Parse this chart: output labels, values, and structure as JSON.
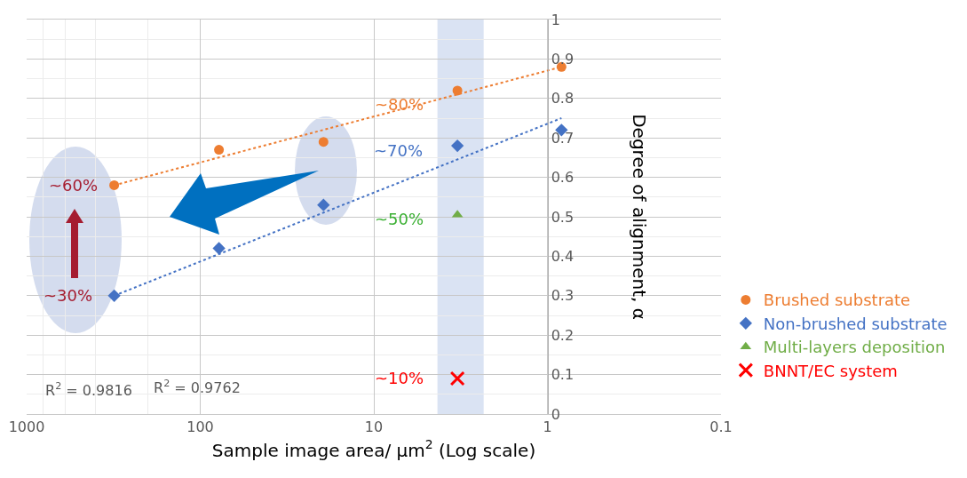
{
  "chart_data": {
    "type": "scatter",
    "xlabel": "Sample image area/ μm$^{2}$ (Log scale)",
    "ylabel": "Degree of alignment, α",
    "log": "x",
    "xlim": [
      1000,
      0.1
    ],
    "xticks": [
      1000,
      100,
      10,
      1,
      0.1
    ],
    "ylim": [
      0,
      1
    ],
    "yticks": [
      0,
      0.1,
      0.2,
      0.3,
      0.4,
      0.5,
      0.6,
      0.7,
      0.8,
      0.9,
      1
    ],
    "grid": true,
    "legend": "right",
    "series": [
      {
        "name": "Brushed substrate",
        "color": "#ed7d31",
        "marker": "circle",
        "x": [
          313,
          78,
          19.5,
          3.3,
          0.83
        ],
        "values": [
          0.58,
          0.67,
          0.69,
          0.82,
          0.88
        ]
      },
      {
        "name": "Non-brushed substrate",
        "color": "#4472c4",
        "marker": "diamond",
        "x": [
          313,
          78,
          19.5,
          3.3,
          0.83
        ],
        "values": [
          0.3,
          0.42,
          0.53,
          0.68,
          0.72
        ]
      },
      {
        "name": "Multi-layers deposition",
        "color": "#70ad47",
        "marker": "triangle",
        "x": [
          3.3
        ],
        "values": [
          0.505
        ]
      },
      {
        "name": "BNNT/EC system",
        "color": "#ff0000",
        "marker": "cross",
        "x": [
          3.3
        ],
        "values": [
          0.09
        ]
      },
      {
        "type": "line",
        "color": "#ed7d31",
        "line_style": "dotted",
        "x": [
          313,
          0.83
        ],
        "values": [
          0.58,
          0.88
        ]
      },
      {
        "type": "line",
        "color": "#4472c4",
        "line_style": "dotted",
        "x": [
          313,
          0.83
        ],
        "values": [
          0.3,
          0.75
        ]
      }
    ],
    "bands": [
      {
        "axis": "x",
        "from": 4.3,
        "to": 2.33,
        "color": "#dae3f3"
      }
    ],
    "annotations": [
      "~80%",
      "~70%",
      "~50%",
      "~10%",
      "~60%",
      "~30%",
      "R$^{2}$ = 0.9816",
      "R$^{2}$ = 0.9762"
    ]
  }
}
